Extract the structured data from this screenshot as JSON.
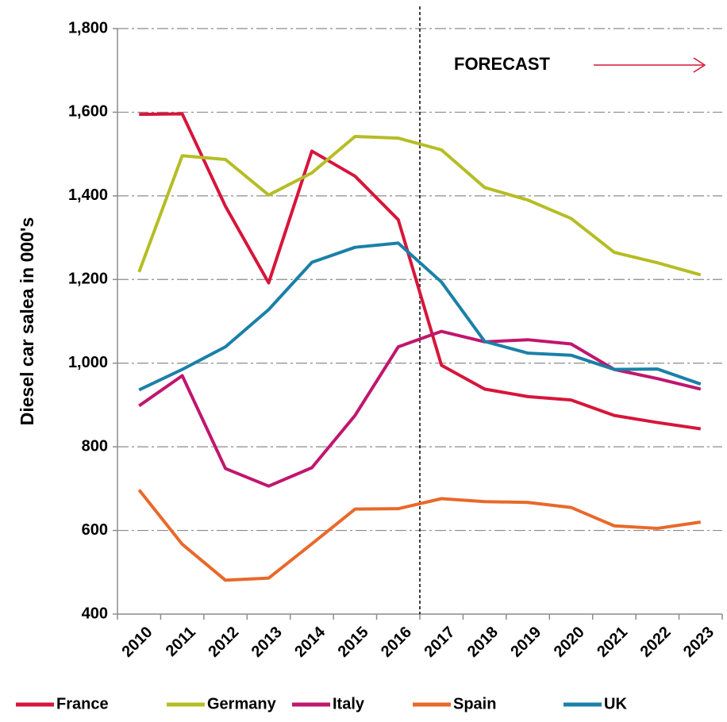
{
  "chart_data": {
    "type": "line",
    "y_label": "Diesel car salea in 000's",
    "annotation": "FORECAST",
    "categories": [
      "2010",
      "2011",
      "2012",
      "2013",
      "2014",
      "2015",
      "2016",
      "2017",
      "2018",
      "2019",
      "2020",
      "2021",
      "2022",
      "2023"
    ],
    "series": [
      {
        "name": "France",
        "color": "#d7153a",
        "values": [
          1595,
          1596,
          1375,
          1192,
          1507,
          1447,
          1343,
          995,
          938,
          920,
          912,
          875,
          858,
          843
        ]
      },
      {
        "name": "Germany",
        "color": "#b5bd24",
        "values": [
          1218,
          1496,
          1487,
          1402,
          1455,
          1542,
          1538,
          1510,
          1420,
          1390,
          1346,
          1265,
          1240,
          1211
        ]
      },
      {
        "name": "Italy",
        "color": "#c0166e",
        "values": [
          898,
          970,
          748,
          706,
          750,
          875,
          1039,
          1076,
          1051,
          1056,
          1046,
          985,
          963,
          938
        ]
      },
      {
        "name": "Spain",
        "color": "#e8692a",
        "values": [
          697,
          567,
          481,
          486,
          568,
          651,
          652,
          676,
          669,
          667,
          655,
          611,
          605,
          620
        ]
      },
      {
        "name": "UK",
        "color": "#1a80a8",
        "values": [
          936,
          985,
          1039,
          1128,
          1241,
          1277,
          1287,
          1194,
          1052,
          1024,
          1019,
          985,
          986,
          950
        ]
      }
    ],
    "ylim": [
      400,
      1800
    ],
    "yticks": [
      400,
      600,
      800,
      {
        "value": 1000,
        "label": "1,000"
      },
      {
        "value": 1200,
        "label": "1,200"
      },
      {
        "value": 1400,
        "label": "1,400"
      },
      {
        "value": 1600,
        "label": "1,600"
      },
      {
        "value": 1800,
        "label": "1,800"
      }
    ],
    "grid": true,
    "legend": "bottom"
  }
}
